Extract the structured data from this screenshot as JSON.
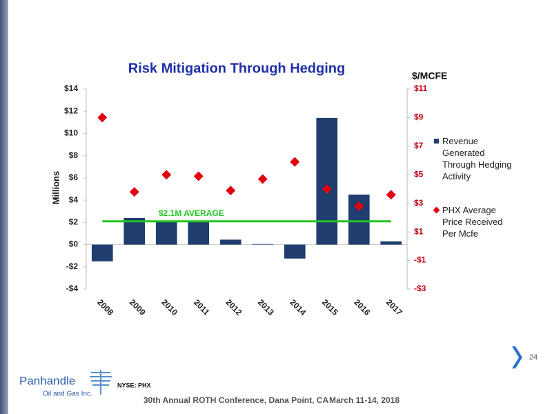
{
  "chart_data": {
    "type": "bar",
    "title": "Risk Mitigation Through Hedging",
    "y_label": "Millions",
    "y2_label": "$/MCFE",
    "categories": [
      "2008",
      "2009",
      "2010",
      "2011",
      "2012",
      "2013",
      "2014",
      "2015",
      "2016",
      "2017"
    ],
    "series": [
      {
        "name": "Revenue Generated Through Hedging Activity",
        "type": "bar",
        "color": "#1f3d6e",
        "values": [
          -1.5,
          2.4,
          2.1,
          2.1,
          0.45,
          0.05,
          -1.25,
          11.4,
          4.5,
          0.3
        ]
      },
      {
        "name": "PHX Average Price Received Per Mcfe",
        "type": "scatter",
        "axis": "y2",
        "color": "#e00010",
        "values": [
          9.0,
          3.8,
          5.0,
          4.9,
          3.9,
          4.7,
          5.9,
          4.0,
          2.8,
          3.6
        ]
      }
    ],
    "ylim": [
      -4,
      14
    ],
    "yticks": [
      {
        "value": -4,
        "label": "-$4"
      },
      {
        "value": -2,
        "label": "-$2"
      },
      {
        "value": 0,
        "label": "$0"
      },
      {
        "value": 2,
        "label": "$2"
      },
      {
        "value": 4,
        "label": "$4"
      },
      {
        "value": 6,
        "label": "$6"
      },
      {
        "value": 8,
        "label": "$8"
      },
      {
        "value": 10,
        "label": "$10"
      },
      {
        "value": 12,
        "label": "$12"
      },
      {
        "value": 14,
        "label": "$14"
      }
    ],
    "y2lim": [
      -3,
      11
    ],
    "y2ticks": [
      {
        "value": -3,
        "label": "-$3"
      },
      {
        "value": -1,
        "label": "-$1"
      },
      {
        "value": 1,
        "label": "$1"
      },
      {
        "value": 3,
        "label": "$3"
      },
      {
        "value": 5,
        "label": "$5"
      },
      {
        "value": 7,
        "label": "$7"
      },
      {
        "value": 9,
        "label": "$9"
      },
      {
        "value": 11,
        "label": "$11"
      }
    ],
    "annotations": [
      {
        "value": 2.1,
        "label": "$2.1M AVERAGE",
        "color": "#22c422"
      }
    ],
    "legend": "right"
  },
  "footer": {
    "conference": "30th Annual ROTH Conference, Dana Point, CA",
    "date": "March 11-14, 2018",
    "page": "24"
  },
  "logo": {
    "name": "Panhandle",
    "sub": "Oil and Gas Inc.",
    "ticker": "NYSE: PHX"
  }
}
